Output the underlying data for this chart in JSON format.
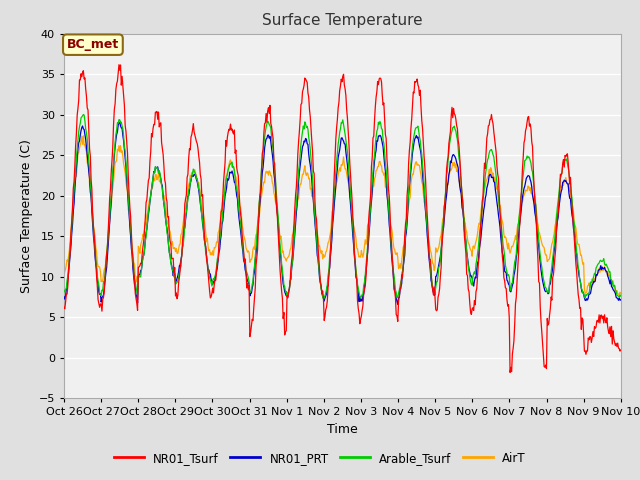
{
  "title": "Surface Temperature",
  "xlabel": "Time",
  "ylabel": "Surface Temperature (C)",
  "ylim": [
    -5,
    40
  ],
  "annotation_text": "BC_met",
  "annotation_color": "#8B0000",
  "annotation_bg": "#FFFFCC",
  "annotation_border": "#8B6914",
  "legend_labels": [
    "NR01_Tsurf",
    "NR01_PRT",
    "Arable_Tsurf",
    "AirT"
  ],
  "legend_colors": [
    "#FF0000",
    "#0000CC",
    "#00CC00",
    "#FFA500"
  ],
  "fig_bg": "#E0E0E0",
  "plot_bg": "#F0F0F0",
  "xtick_labels": [
    "Oct 26",
    "Oct 27",
    "Oct 28",
    "Oct 29",
    "Oct 30",
    "Oct 31",
    "Nov 1",
    "Nov 2",
    "Nov 3",
    "Nov 4",
    "Nov 5",
    "Nov 6",
    "Nov 7",
    "Nov 8",
    "Nov 9",
    "Nov 10"
  ],
  "n_days": 15,
  "seed": 42,
  "nr01_peaks": [
    35.5,
    35.5,
    30.0,
    28.0,
    28.5,
    31.0,
    34.0,
    34.5,
    34.5,
    34.5,
    30.5,
    29.5,
    29.5,
    25.0,
    5.0
  ],
  "nr01_mins": [
    6.0,
    6.5,
    11.0,
    7.5,
    8.5,
    3.0,
    7.5,
    5.0,
    5.5,
    7.0,
    6.0,
    6.0,
    -2.0,
    4.0,
    1.0
  ],
  "prt_peaks": [
    28.5,
    29.0,
    23.5,
    22.5,
    23.0,
    27.5,
    27.0,
    27.0,
    27.5,
    27.5,
    25.0,
    22.5,
    22.5,
    22.0,
    11.0
  ],
  "prt_mins": [
    7.5,
    7.0,
    10.0,
    9.5,
    9.0,
    7.5,
    7.5,
    7.0,
    7.0,
    7.5,
    10.0,
    9.0,
    8.0,
    8.0,
    7.0
  ],
  "arable_peaks": [
    30.0,
    29.5,
    23.5,
    23.0,
    24.0,
    29.0,
    29.0,
    29.0,
    29.0,
    28.5,
    28.5,
    25.5,
    25.0,
    24.5,
    12.0
  ],
  "arable_mins": [
    8.0,
    8.0,
    10.0,
    9.0,
    9.5,
    8.0,
    7.5,
    7.5,
    7.5,
    8.0,
    9.0,
    10.0,
    8.5,
    8.0,
    7.5
  ],
  "airt_peaks": [
    27.0,
    26.0,
    22.5,
    23.0,
    24.0,
    23.0,
    23.0,
    24.0,
    24.0,
    24.0,
    24.0,
    23.0,
    21.0,
    22.0,
    11.0
  ],
  "airt_mins": [
    10.5,
    9.5,
    13.5,
    12.5,
    13.0,
    12.0,
    12.5,
    12.5,
    12.5,
    11.0,
    13.0,
    13.5,
    13.0,
    12.0,
    8.0
  ]
}
